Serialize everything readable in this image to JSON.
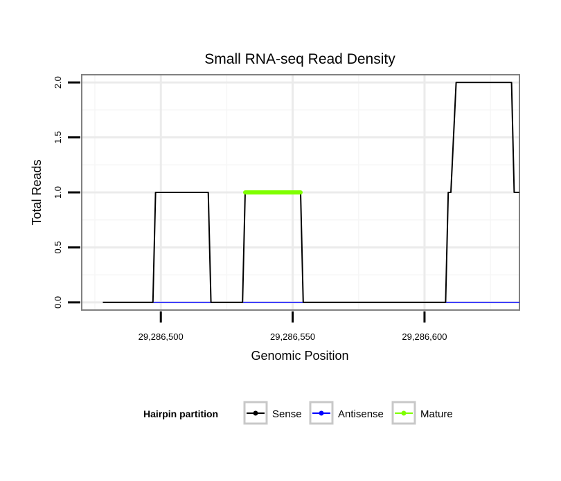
{
  "chart_data": {
    "type": "line",
    "title": "Small RNA-seq Read Density",
    "xlabel": "Genomic Position",
    "ylabel": "Total Reads",
    "xlim": [
      29286470,
      29286636
    ],
    "ylim": [
      -0.07,
      2.07
    ],
    "x_ticks": [
      29286500,
      29286550,
      29286600
    ],
    "x_tick_labels": [
      "29,286,500",
      "29,286,550",
      "29,286,600"
    ],
    "y_ticks": [
      0,
      0.5,
      1,
      1.5,
      2
    ],
    "y_tick_labels": [
      "0.0",
      "0.5",
      "1.0",
      "1.5",
      "2.0"
    ],
    "grid": true,
    "legend": {
      "title": "Hairpin partition",
      "position": "bottom",
      "entries": [
        "Sense",
        "Antisense",
        "Mature"
      ]
    },
    "series": [
      {
        "name": "Sense",
        "color": "#000000",
        "x": [
          29286478,
          29286497,
          29286498,
          29286518,
          29286519,
          29286531,
          29286532,
          29286553,
          29286554,
          29286608,
          29286609,
          29286610,
          29286612,
          29286633,
          29286634,
          29286636
        ],
        "y": [
          0,
          0,
          1,
          1,
          0,
          0,
          1,
          1,
          0,
          0,
          1,
          1,
          2,
          2,
          1,
          1
        ]
      },
      {
        "name": "Antisense",
        "color": "#0000ff",
        "x": [
          29286478,
          29286636
        ],
        "y": [
          0,
          0
        ]
      },
      {
        "name": "Mature",
        "color": "#7fff00",
        "x": [
          29286532,
          29286553
        ],
        "y": [
          1,
          1
        ]
      }
    ]
  }
}
